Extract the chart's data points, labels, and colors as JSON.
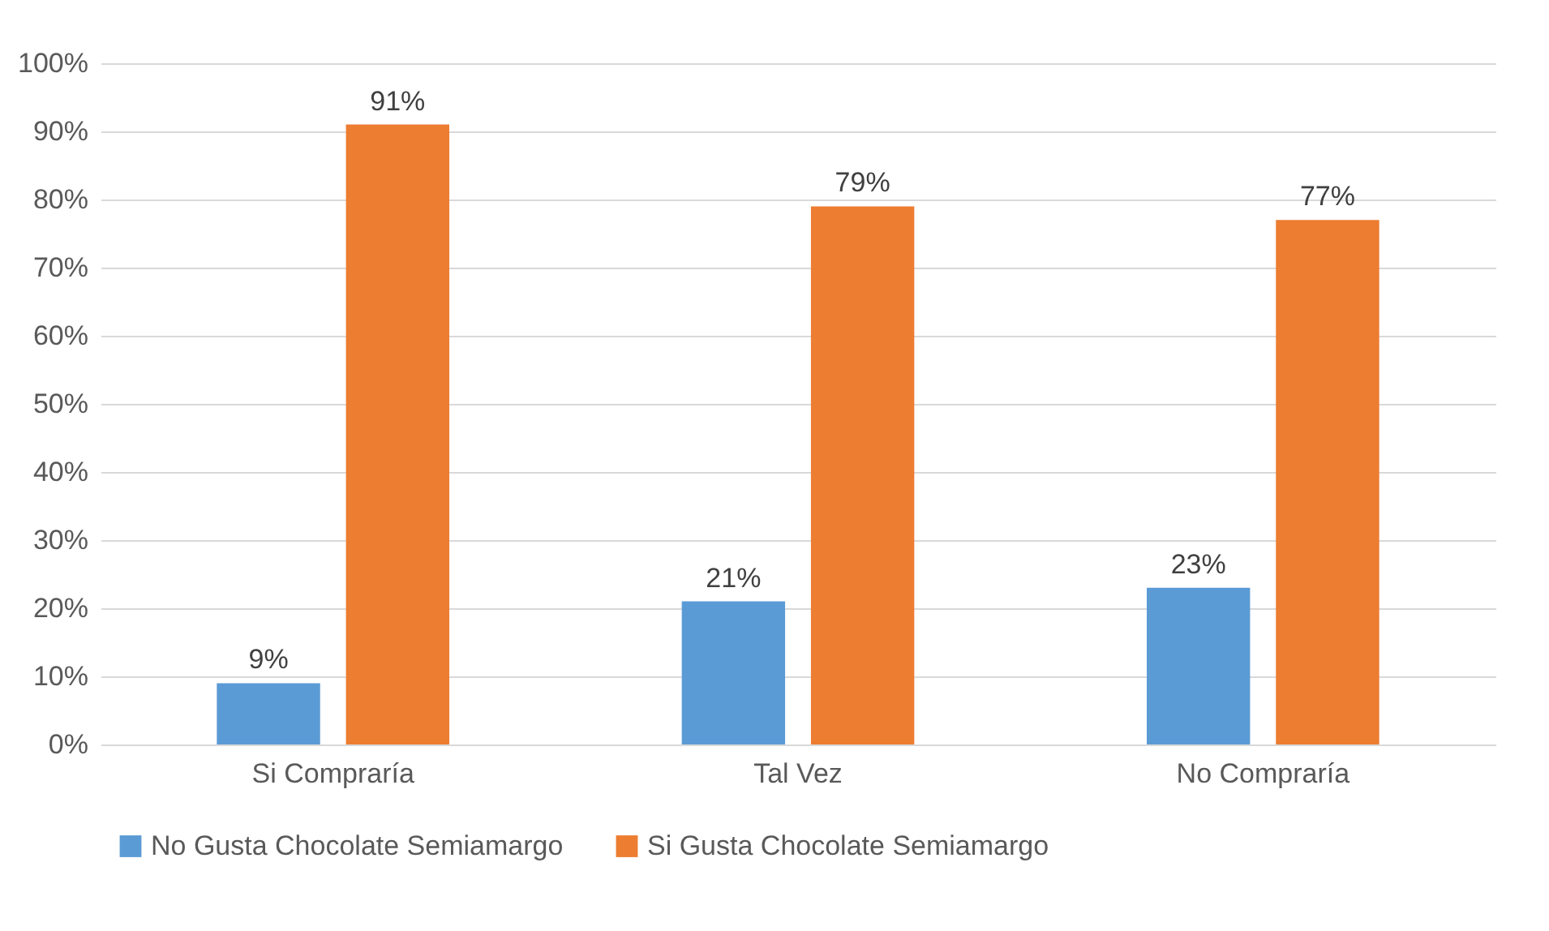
{
  "chart_data": {
    "type": "bar",
    "categories": [
      "Si Compraría",
      "Tal Vez",
      "No Compraría"
    ],
    "series": [
      {
        "name": "No Gusta Chocolate Semiamargo",
        "color": "#5b9bd5",
        "values": [
          9,
          21,
          23
        ]
      },
      {
        "name": "Si Gusta Chocolate Semiamargo",
        "color": "#ed7d31",
        "values": [
          91,
          79,
          77
        ]
      }
    ],
    "ylim": [
      0,
      100
    ],
    "yticks": [
      {
        "value": 0,
        "label": "0%"
      },
      {
        "value": 10,
        "label": "10%"
      },
      {
        "value": 20,
        "label": "20%"
      },
      {
        "value": 30,
        "label": "30%"
      },
      {
        "value": 40,
        "label": "40%"
      },
      {
        "value": 50,
        "label": "50%"
      },
      {
        "value": 60,
        "label": "60%"
      },
      {
        "value": 70,
        "label": "70%"
      },
      {
        "value": 80,
        "label": "80%"
      },
      {
        "value": 90,
        "label": "90%"
      },
      {
        "value": 100,
        "label": "100%"
      }
    ],
    "value_labels": [
      [
        "9%",
        "21%",
        "23%"
      ],
      [
        "91%",
        "79%",
        "77%"
      ]
    ],
    "grid": "y",
    "legend": "bottom"
  }
}
